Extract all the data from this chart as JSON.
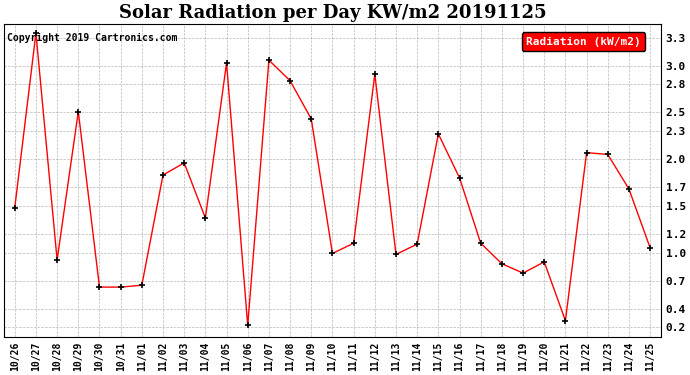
{
  "title": "Solar Radiation per Day KW/m2 20191125",
  "copyright": "Copyright 2019 Cartronics.com",
  "legend_label": "Radiation (kW/m2)",
  "x_labels": [
    "10/26",
    "10/27",
    "10/28",
    "10/29",
    "10/30",
    "10/31",
    "11/01",
    "11/02",
    "11/03",
    "11/04",
    "11/05",
    "11/06",
    "11/07",
    "11/08",
    "11/09",
    "11/10",
    "11/11",
    "11/12",
    "11/13",
    "11/14",
    "11/15",
    "11/16",
    "11/17",
    "11/18",
    "11/19",
    "11/20",
    "11/21",
    "11/22",
    "11/23",
    "11/24",
    "11/25"
  ],
  "y_values": [
    1.48,
    3.35,
    0.92,
    2.51,
    0.63,
    0.63,
    0.65,
    1.83,
    1.96,
    1.37,
    3.03,
    0.22,
    3.06,
    2.84,
    2.43,
    0.99,
    1.1,
    2.91,
    0.98,
    1.09,
    2.27,
    1.8,
    1.1,
    0.88,
    0.78,
    0.9,
    0.27,
    2.07,
    2.05,
    1.68,
    1.05
  ],
  "line_color": "red",
  "marker_color": "black",
  "background_color": "#ffffff",
  "grid_color": "#888888",
  "ylim_min": 0.1,
  "ylim_max": 3.45,
  "yticks": [
    0.2,
    0.4,
    0.7,
    1.0,
    1.2,
    1.5,
    1.7,
    2.0,
    2.3,
    2.5,
    2.8,
    3.0,
    3.3
  ],
  "title_fontsize": 13,
  "copyright_fontsize": 7,
  "legend_fontsize": 8,
  "tick_fontsize": 7
}
